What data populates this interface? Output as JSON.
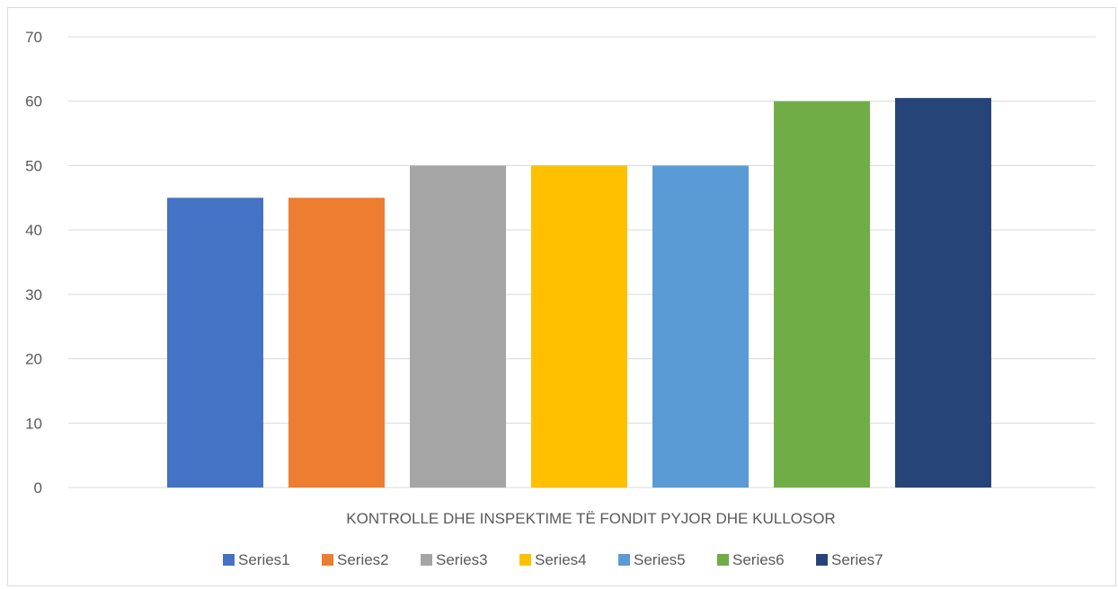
{
  "chart_data": {
    "type": "bar",
    "categories": [
      "KONTROLLE DHE INSPEKTIME TË FONDIT PYJOR DHE KULLOSOR"
    ],
    "series": [
      {
        "name": "Series1",
        "values": [
          45
        ],
        "color": "#4472c4"
      },
      {
        "name": "Series2",
        "values": [
          45
        ],
        "color": "#ed7d31"
      },
      {
        "name": "Series3",
        "values": [
          50
        ],
        "color": "#a5a5a5"
      },
      {
        "name": "Series4",
        "values": [
          50
        ],
        "color": "#ffc000"
      },
      {
        "name": "Series5",
        "values": [
          50
        ],
        "color": "#5b9bd5"
      },
      {
        "name": "Series6",
        "values": [
          60
        ],
        "color": "#70ad47"
      },
      {
        "name": "Series7",
        "values": [
          60.5
        ],
        "color": "#264478"
      }
    ],
    "yticks": [
      "0",
      "10",
      "20",
      "30",
      "40",
      "50",
      "60",
      "70"
    ],
    "ylim": [
      0,
      70
    ],
    "grid": true,
    "legend": "bottom",
    "title": "",
    "xlabel": "",
    "ylabel": ""
  }
}
